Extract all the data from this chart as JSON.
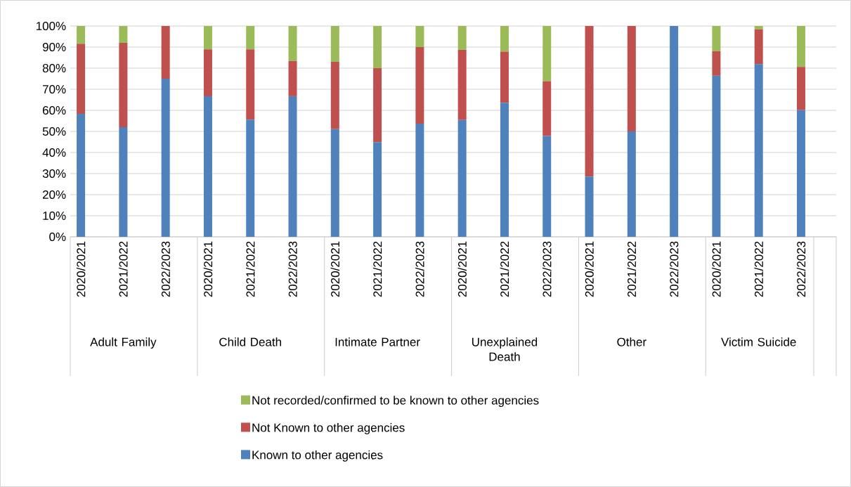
{
  "chart_data": {
    "type": "bar",
    "stacked": true,
    "categories": [
      "2020/2021",
      "2021/2022",
      "2022/2023",
      "2020/2021",
      "2021/2022",
      "2022/2023",
      "2020/2021",
      "2021/2022",
      "2022/2023",
      "2020/2021",
      "2021/2022",
      "2022/2023",
      "2020/2021",
      "2021/2022",
      "2022/2023",
      "2020/2021",
      "2021/2022",
      "2022/2023"
    ],
    "annotations": [
      "Adult Family",
      "Child Death",
      "Intimate Partner",
      "Unexplained Death",
      "Other",
      "Victim Suicide"
    ],
    "series": [
      {
        "name": "Known to other agencies",
        "color": "#4f81bd",
        "values": [
          58.3,
          52,
          75,
          66.7,
          55.6,
          66.7,
          51.1,
          44.9,
          53.7,
          55.4,
          63.6,
          47.8,
          28.6,
          50,
          100,
          76.4,
          81.9,
          60.1
        ]
      },
      {
        "name": "Not Known to other agencies",
        "color": "#c0504d",
        "values": [
          33.3,
          40,
          25,
          22.2,
          33.3,
          16.7,
          31.9,
          35.1,
          36.3,
          33.3,
          24.2,
          26,
          71.4,
          50,
          0,
          11.6,
          16.5,
          20.5
        ]
      },
      {
        "name": "Not recorded/confirmed to be known to other agencies",
        "color": "#9bbb59",
        "values": [
          8.4,
          8,
          0,
          11.1,
          11.1,
          16.6,
          17,
          20,
          10,
          11.3,
          12.2,
          26.2,
          0,
          0,
          0,
          12,
          1.6,
          19.4
        ]
      }
    ],
    "ylim": [
      0,
      100
    ],
    "yticks": [
      {
        "value": 0,
        "label": "0%"
      },
      {
        "value": 10,
        "label": "10%"
      },
      {
        "value": 20,
        "label": "20%"
      },
      {
        "value": 30,
        "label": "30%"
      },
      {
        "value": 40,
        "label": "40%"
      },
      {
        "value": 50,
        "label": "50%"
      },
      {
        "value": 60,
        "label": "60%"
      },
      {
        "value": 70,
        "label": "70%"
      },
      {
        "value": 80,
        "label": "80%"
      },
      {
        "value": 90,
        "label": "90%"
      },
      {
        "value": 100,
        "label": "100%"
      }
    ],
    "grid": "y",
    "legend": "bottom"
  }
}
